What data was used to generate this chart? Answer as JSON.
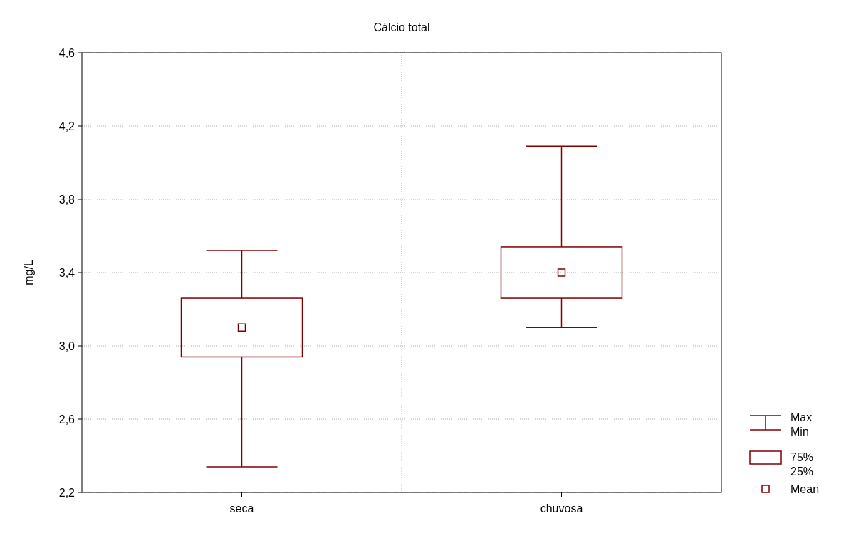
{
  "chart_data": {
    "type": "box",
    "title": "Cálcio total",
    "ylabel": "mg/L",
    "categories": [
      "seca",
      "chuvosa"
    ],
    "series": [
      {
        "color": "#800000",
        "boxes": [
          {
            "low": 2.34,
            "q1": 2.94,
            "q3": 3.26,
            "high": 3.52,
            "mean": 3.1
          },
          {
            "low": 3.1,
            "q1": 3.26,
            "q3": 3.54,
            "high": 4.09,
            "mean": 3.4
          }
        ]
      }
    ],
    "ylim": [
      2.2,
      4.6
    ],
    "yticks": [
      {
        "value": 2.2,
        "label": "2,2"
      },
      {
        "value": 2.6,
        "label": "2,6"
      },
      {
        "value": 3.0,
        "label": "3,0"
      },
      {
        "value": 3.4,
        "label": "3,4"
      },
      {
        "value": 3.8,
        "label": "3,8"
      },
      {
        "value": 4.2,
        "label": "4,2"
      },
      {
        "value": 4.6,
        "label": "4,6"
      }
    ],
    "grid": true,
    "annotations": [
      "Max",
      "Min",
      "75%",
      "25%",
      "Mean"
    ]
  }
}
